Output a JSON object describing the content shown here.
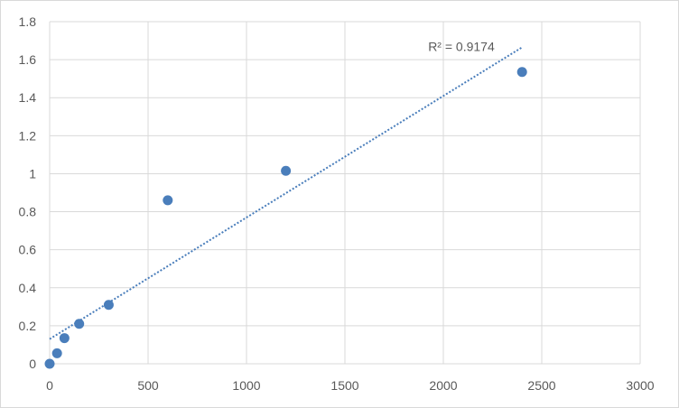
{
  "chart_data": {
    "type": "scatter",
    "title": "",
    "xlabel": "",
    "ylabel": "",
    "xlim": [
      0,
      3000
    ],
    "ylim": [
      0,
      1.8
    ],
    "x_ticks": [
      0,
      500,
      1000,
      1500,
      2000,
      2500,
      3000
    ],
    "y_ticks": [
      0,
      0.2,
      0.4,
      0.6,
      0.8,
      1,
      1.2,
      1.4,
      1.6,
      1.8
    ],
    "x_tick_labels": [
      "0",
      "500",
      "1000",
      "1500",
      "2000",
      "2500",
      "3000"
    ],
    "y_tick_labels": [
      "0",
      "0.2",
      "0.4",
      "0.6",
      "0.8",
      "1",
      "1.2",
      "1.4",
      "1.6",
      "1.8"
    ],
    "grid": true,
    "series": [
      {
        "x": [
          0,
          37.5,
          75,
          150,
          300,
          600,
          1200,
          2400
        ],
        "y": [
          0.0,
          0.055,
          0.135,
          0.21,
          0.31,
          0.86,
          1.015,
          1.535
        ]
      }
    ],
    "trendline": {
      "type": "linear",
      "x": [
        0,
        2400
      ],
      "y": [
        0.13,
        1.665
      ],
      "annotation": "R² = 0.9174"
    },
    "colors": {
      "marker": "#4a7ebb",
      "trendline": "#4a7ebb",
      "grid": "#d9d9d9",
      "text": "#595959"
    }
  }
}
